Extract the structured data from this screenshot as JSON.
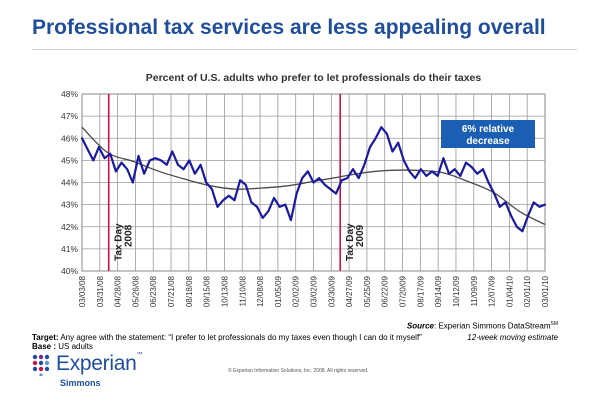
{
  "header": {
    "title": "Professional tax services are less appealing overall"
  },
  "chart_data": {
    "type": "line",
    "title": "Percent of U.S. adults who prefer to let professionals do their taxes",
    "xlabel": "",
    "ylabel": "",
    "ylim": [
      40,
      48
    ],
    "yticks": [
      40,
      41,
      42,
      43,
      44,
      45,
      46,
      47,
      48
    ],
    "ytick_labels": [
      "40%",
      "41%",
      "42%",
      "43%",
      "44%",
      "45%",
      "46%",
      "47%",
      "48%"
    ],
    "x_labels": [
      "03/03/08",
      "03/31/08",
      "04/28/08",
      "05/26/08",
      "06/23/08",
      "07/21/08",
      "08/18/08",
      "09/15/08",
      "10/13/08",
      "11/10/08",
      "12/08/08",
      "01/05/09",
      "02/02/09",
      "03/02/09",
      "03/30/09",
      "04/27/09",
      "05/25/09",
      "06/22/09",
      "07/20/09",
      "08/17/09",
      "09/14/09",
      "10/12/09",
      "11/09/09",
      "12/07/09",
      "01/04/10",
      "02/01/10",
      "03/01/10"
    ],
    "grid": true,
    "series": [
      {
        "name": "12-week moving estimate",
        "color": "#1a1aa0",
        "values": [
          46.0,
          45.5,
          45.0,
          45.6,
          45.1,
          45.3,
          44.5,
          44.9,
          44.6,
          44.0,
          45.2,
          44.4,
          45.0,
          45.1,
          45.0,
          44.8,
          45.4,
          44.8,
          44.6,
          45.0,
          44.4,
          44.8,
          44.0,
          43.7,
          42.9,
          43.2,
          43.4,
          43.2,
          44.1,
          43.9,
          43.1,
          42.9,
          42.4,
          42.7,
          43.3,
          42.9,
          43.0,
          42.3,
          43.5,
          44.2,
          44.5,
          44.0,
          44.2,
          43.9,
          43.7,
          43.5,
          44.1,
          44.2,
          44.6,
          44.2,
          44.8,
          45.6,
          46.0,
          46.5,
          46.2,
          45.4,
          45.8,
          45.0,
          44.5,
          44.2,
          44.6,
          44.3,
          44.5,
          44.3,
          45.1,
          44.4,
          44.6,
          44.3,
          44.9,
          44.7,
          44.4,
          44.6,
          44.0,
          43.5,
          42.9,
          43.1,
          42.5,
          42.0,
          41.8,
          42.5,
          43.1,
          42.9,
          43.0
        ]
      },
      {
        "name": "trend",
        "color": "#4a4a4a",
        "values": [
          46.5,
          45.35,
          44.95,
          44.5,
          44.15,
          43.85,
          43.7,
          43.75,
          43.85,
          44.05,
          44.25,
          44.45,
          44.55,
          44.55,
          44.45,
          44.05,
          43.55,
          42.7,
          42.1
        ]
      }
    ],
    "annotations": [
      {
        "label": "Tax Day 2008",
        "x": "04/15/08"
      },
      {
        "label": "Tax Day 2009",
        "x": "04/15/09"
      }
    ],
    "callout": "6% relative decrease"
  },
  "footer": {
    "source_label": "Source",
    "source_text": ":  Experian Simmons DataStream",
    "source_sup": "SM",
    "moving_estimate": "12-week moving estimate",
    "target_label": "Target:",
    "target_text": " Any agree with the statement: “I prefer to let professionals do my taxes even though I can do it myself”",
    "base_label": "Base :",
    "base_text": " US adults",
    "logo_name": "Experian",
    "logo_tm": "™",
    "logo_sub": "Simmons",
    "copyright": "© Experian Information Solutions, Inc. 2008.  All rights reserved."
  },
  "colors": {
    "title_blue": "#1f4e9c",
    "marker_red": "#d01040",
    "callout_bg": "#1a5fb4"
  }
}
